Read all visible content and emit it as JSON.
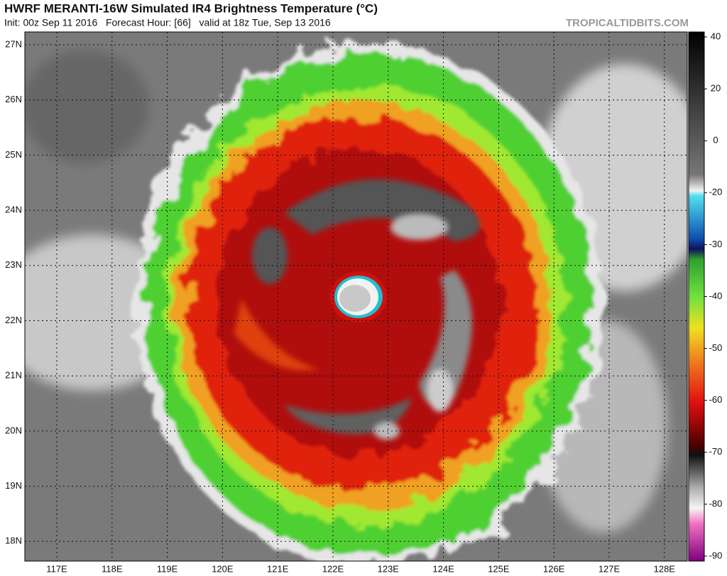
{
  "header": {
    "title": "HWRF MERANTI-16W Simulated IR4 Brightness Temperature (°C)",
    "subtitle": "Init: 00z Sep 11 2016   Forecast Hour: [66]   valid at 18z Tue, Sep 13 2016",
    "credit": "TROPICALTIDBITS.COM"
  },
  "map": {
    "lat_labels": [
      "27N",
      "26N",
      "25N",
      "24N",
      "23N",
      "22N",
      "21N",
      "20N",
      "19N",
      "18N"
    ],
    "lon_labels": [
      "117E",
      "118E",
      "119E",
      "120E",
      "121E",
      "122E",
      "123E",
      "124E",
      "125E",
      "126E",
      "127E",
      "128E"
    ]
  },
  "colorbar": {
    "ticks": [
      40,
      20,
      0,
      -20,
      -30,
      -40,
      -50,
      -60,
      -70,
      -80,
      -90
    ]
  }
}
